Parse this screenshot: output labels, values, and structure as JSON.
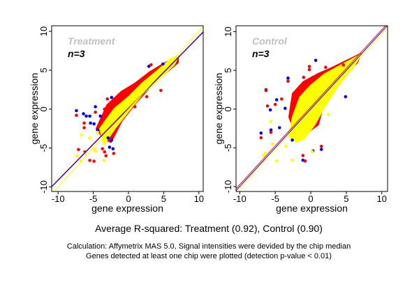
{
  "chart_data": [
    {
      "type": "scatter",
      "title": "Treatment",
      "subtitle": "n=3",
      "xlabel": "gene expression",
      "ylabel": "gene expression",
      "xlim": [
        -10.5,
        10.5
      ],
      "ylim": [
        -10.5,
        10.5
      ],
      "xticks": [
        -10,
        -5,
        0,
        5,
        10
      ],
      "yticks": [
        -10,
        -5,
        0,
        5,
        10
      ],
      "grid": false,
      "colors": {
        "blue": "#0000ff",
        "red": "#ff0000",
        "yellow": "#ffff00",
        "title": "#c0c0c0"
      },
      "dense_regions": [
        {
          "color": "#ff0000",
          "polygon": [
            [
              -4.5,
              -2.5
            ],
            [
              -3,
              0.5
            ],
            [
              -1,
              2.2
            ],
            [
              1,
              3.3
            ],
            [
              3,
              4.7
            ],
            [
              5,
              5.8
            ],
            [
              7,
              6.8
            ],
            [
              7,
              6.0
            ],
            [
              5,
              4.5
            ],
            [
              3,
              2.8
            ],
            [
              1,
              0.8
            ],
            [
              -1,
              -1.5
            ],
            [
              -2.5,
              -4.2
            ],
            [
              -3.5,
              -3.8
            ]
          ]
        },
        {
          "color": "#ffff00",
          "polygon": [
            [
              -4,
              -2.5
            ],
            [
              -2,
              0
            ],
            [
              0,
              1.5
            ],
            [
              2,
              3.3
            ],
            [
              4,
              4.8
            ],
            [
              6,
              6.4
            ],
            [
              7,
              6.8
            ],
            [
              6.5,
              5.8
            ],
            [
              4,
              3.6
            ],
            [
              2,
              2.0
            ],
            [
              0,
              -0.2
            ],
            [
              -2,
              -2.5
            ],
            [
              -3.5,
              -4.5
            ]
          ]
        }
      ],
      "series": [
        {
          "color": "#0000ff",
          "points": [
            [
              -7.4,
              -0.2
            ],
            [
              -6.4,
              -0.6
            ],
            [
              -6.0,
              -0.9
            ],
            [
              -5.5,
              -0.9
            ],
            [
              -4.7,
              0.3
            ],
            [
              -5.4,
              -1.8
            ],
            [
              -4.9,
              -1.9
            ],
            [
              -4.4,
              -2.7
            ],
            [
              -4.0,
              -0.9
            ],
            [
              -2.4,
              1.5
            ],
            [
              -2.9,
              -3.7
            ],
            [
              -2.4,
              -4.0
            ],
            [
              -2.7,
              -4.9
            ],
            [
              -2.2,
              -5.1
            ],
            [
              2.9,
              5.5
            ],
            [
              4.9,
              5.8
            ]
          ]
        },
        {
          "color": "#ff0000",
          "points": [
            [
              -7.4,
              -0.8
            ],
            [
              -6.3,
              -1.8
            ],
            [
              -6.3,
              -2.4
            ],
            [
              -7.1,
              -5.2
            ],
            [
              -6.2,
              -5.5
            ],
            [
              -5.5,
              -6.6
            ],
            [
              -4.9,
              -6.7
            ],
            [
              -3.7,
              -5.1
            ],
            [
              -3.4,
              -5.5
            ],
            [
              -3.2,
              -6.0
            ],
            [
              -2.1,
              -5.7
            ],
            [
              -3.0,
              1.3
            ],
            [
              -3.4,
              0.0
            ],
            [
              -4.7,
              -0.4
            ],
            [
              4.6,
              2.4
            ],
            [
              2.6,
              1.6
            ],
            [
              0.9,
              0.3
            ],
            [
              3.2,
              5.7
            ]
          ]
        },
        {
          "color": "#ffff00",
          "points": [
            [
              -6.7,
              -3.3
            ],
            [
              -7.3,
              -6.0
            ],
            [
              -6.8,
              -6.7
            ],
            [
              -6.2,
              -5.7
            ],
            [
              -4.9,
              -5.1
            ],
            [
              -4.7,
              -5.4
            ],
            [
              -3.5,
              -6.6
            ],
            [
              -5.5,
              -3.7
            ],
            [
              -4.4,
              -3.0
            ]
          ]
        }
      ],
      "fit_lines": [
        {
          "color": "#ff0000",
          "slope": 0.924,
          "intercept": 0.15
        },
        {
          "color": "#0000ff",
          "slope": 0.924,
          "intercept": 0.08
        },
        {
          "color": "#ffff00",
          "slope": 1.0,
          "intercept": 0.0
        }
      ]
    },
    {
      "type": "scatter",
      "title": "Control",
      "subtitle": "n=3",
      "xlabel": "gene expression",
      "ylabel": "gene expression",
      "xlim": [
        -10.5,
        10.5
      ],
      "ylim": [
        -10.5,
        10.5
      ],
      "xticks": [
        -10,
        -5,
        0,
        5,
        10
      ],
      "yticks": [
        -10,
        -5,
        0,
        5,
        10
      ],
      "grid": false,
      "colors": {
        "blue": "#0000ff",
        "red": "#ff0000",
        "yellow": "#ffff00",
        "title": "#c0c0c0"
      },
      "dense_regions": [
        {
          "color": "#ff0000",
          "polygon": [
            [
              -3,
              -1
            ],
            [
              -2.5,
              2
            ],
            [
              -1,
              3.5
            ],
            [
              1,
              4.5
            ],
            [
              3,
              5.3
            ],
            [
              5,
              6.2
            ],
            [
              7,
              7.1
            ],
            [
              6.5,
              6.0
            ],
            [
              4,
              4.0
            ],
            [
              2,
              1.5
            ],
            [
              1,
              -2
            ],
            [
              -0.5,
              -3
            ],
            [
              -2,
              -3.5
            ]
          ]
        },
        {
          "color": "#ffff00",
          "polygon": [
            [
              -3,
              -3.5
            ],
            [
              -2.5,
              -1
            ],
            [
              -1.5,
              1.5
            ],
            [
              0,
              3
            ],
            [
              2,
              4.5
            ],
            [
              4,
              5.5
            ],
            [
              7,
              7
            ],
            [
              6,
              5.5
            ],
            [
              4,
              3.3
            ],
            [
              2,
              0.5
            ],
            [
              0.5,
              -2
            ],
            [
              -1,
              -3.8
            ],
            [
              -2,
              -4.2
            ]
          ]
        }
      ],
      "series": [
        {
          "color": "#0000ff",
          "points": [
            [
              0.7,
              6.3
            ],
            [
              -3.2,
              4.0
            ],
            [
              -6.3,
              2.5
            ],
            [
              -7.0,
              -3.1
            ],
            [
              -5.6,
              -2.7
            ],
            [
              -4.8,
              1.2
            ],
            [
              -5.7,
              -0.1
            ],
            [
              -3.6,
              0.1
            ],
            [
              -2.6,
              -4.0
            ],
            [
              0.3,
              -5.4
            ],
            [
              -1.1,
              -6.6
            ],
            [
              1.5,
              -5.2
            ],
            [
              4.9,
              1.6
            ],
            [
              -4.4,
              -2.4
            ]
          ]
        },
        {
          "color": "#ff0000",
          "points": [
            [
              -0.2,
              5.5
            ],
            [
              -0.2,
              5.1
            ],
            [
              -1.0,
              4.1
            ],
            [
              -3.2,
              3.6
            ],
            [
              -6.3,
              2.4
            ],
            [
              -7.0,
              -3.7
            ],
            [
              -6.1,
              0.4
            ],
            [
              -5.0,
              0.6
            ],
            [
              -4.1,
              1.3
            ],
            [
              -5.6,
              -3.0
            ],
            [
              -1.1,
              -6.0
            ],
            [
              -0.8,
              -6.7
            ],
            [
              1.5,
              -4.8
            ],
            [
              2.1,
              5.4
            ],
            [
              4.6,
              5.7
            ]
          ]
        },
        {
          "color": "#ffff00",
          "points": [
            [
              -4.8,
              -6.7
            ],
            [
              -2.6,
              -6.6
            ],
            [
              -3.5,
              -4.8
            ],
            [
              -5.4,
              -4.5
            ],
            [
              -6.4,
              -5.7
            ],
            [
              -6.6,
              -6.0
            ],
            [
              0.2,
              -5.5
            ],
            [
              -5.6,
              -1.6
            ],
            [
              2.5,
              -0.7
            ]
          ]
        }
      ],
      "fit_lines": [
        {
          "color": "#ff0000",
          "slope": 1.0,
          "intercept": 0.25
        },
        {
          "color": "#0000ff",
          "slope": 1.0,
          "intercept": 0.0
        },
        {
          "color": "#ffff00",
          "slope": 1.0,
          "intercept": -0.25
        }
      ]
    }
  ],
  "footer": {
    "summary": "Average R-squared: Treatment (0.92), Control (0.90)",
    "note_line1": "Calculation: Affymetrix MAS 5.0, Signal intensities were devided by the chip median",
    "note_line2": "Genes detected at least one chip were plotted (detection p-value < 0.01)"
  }
}
